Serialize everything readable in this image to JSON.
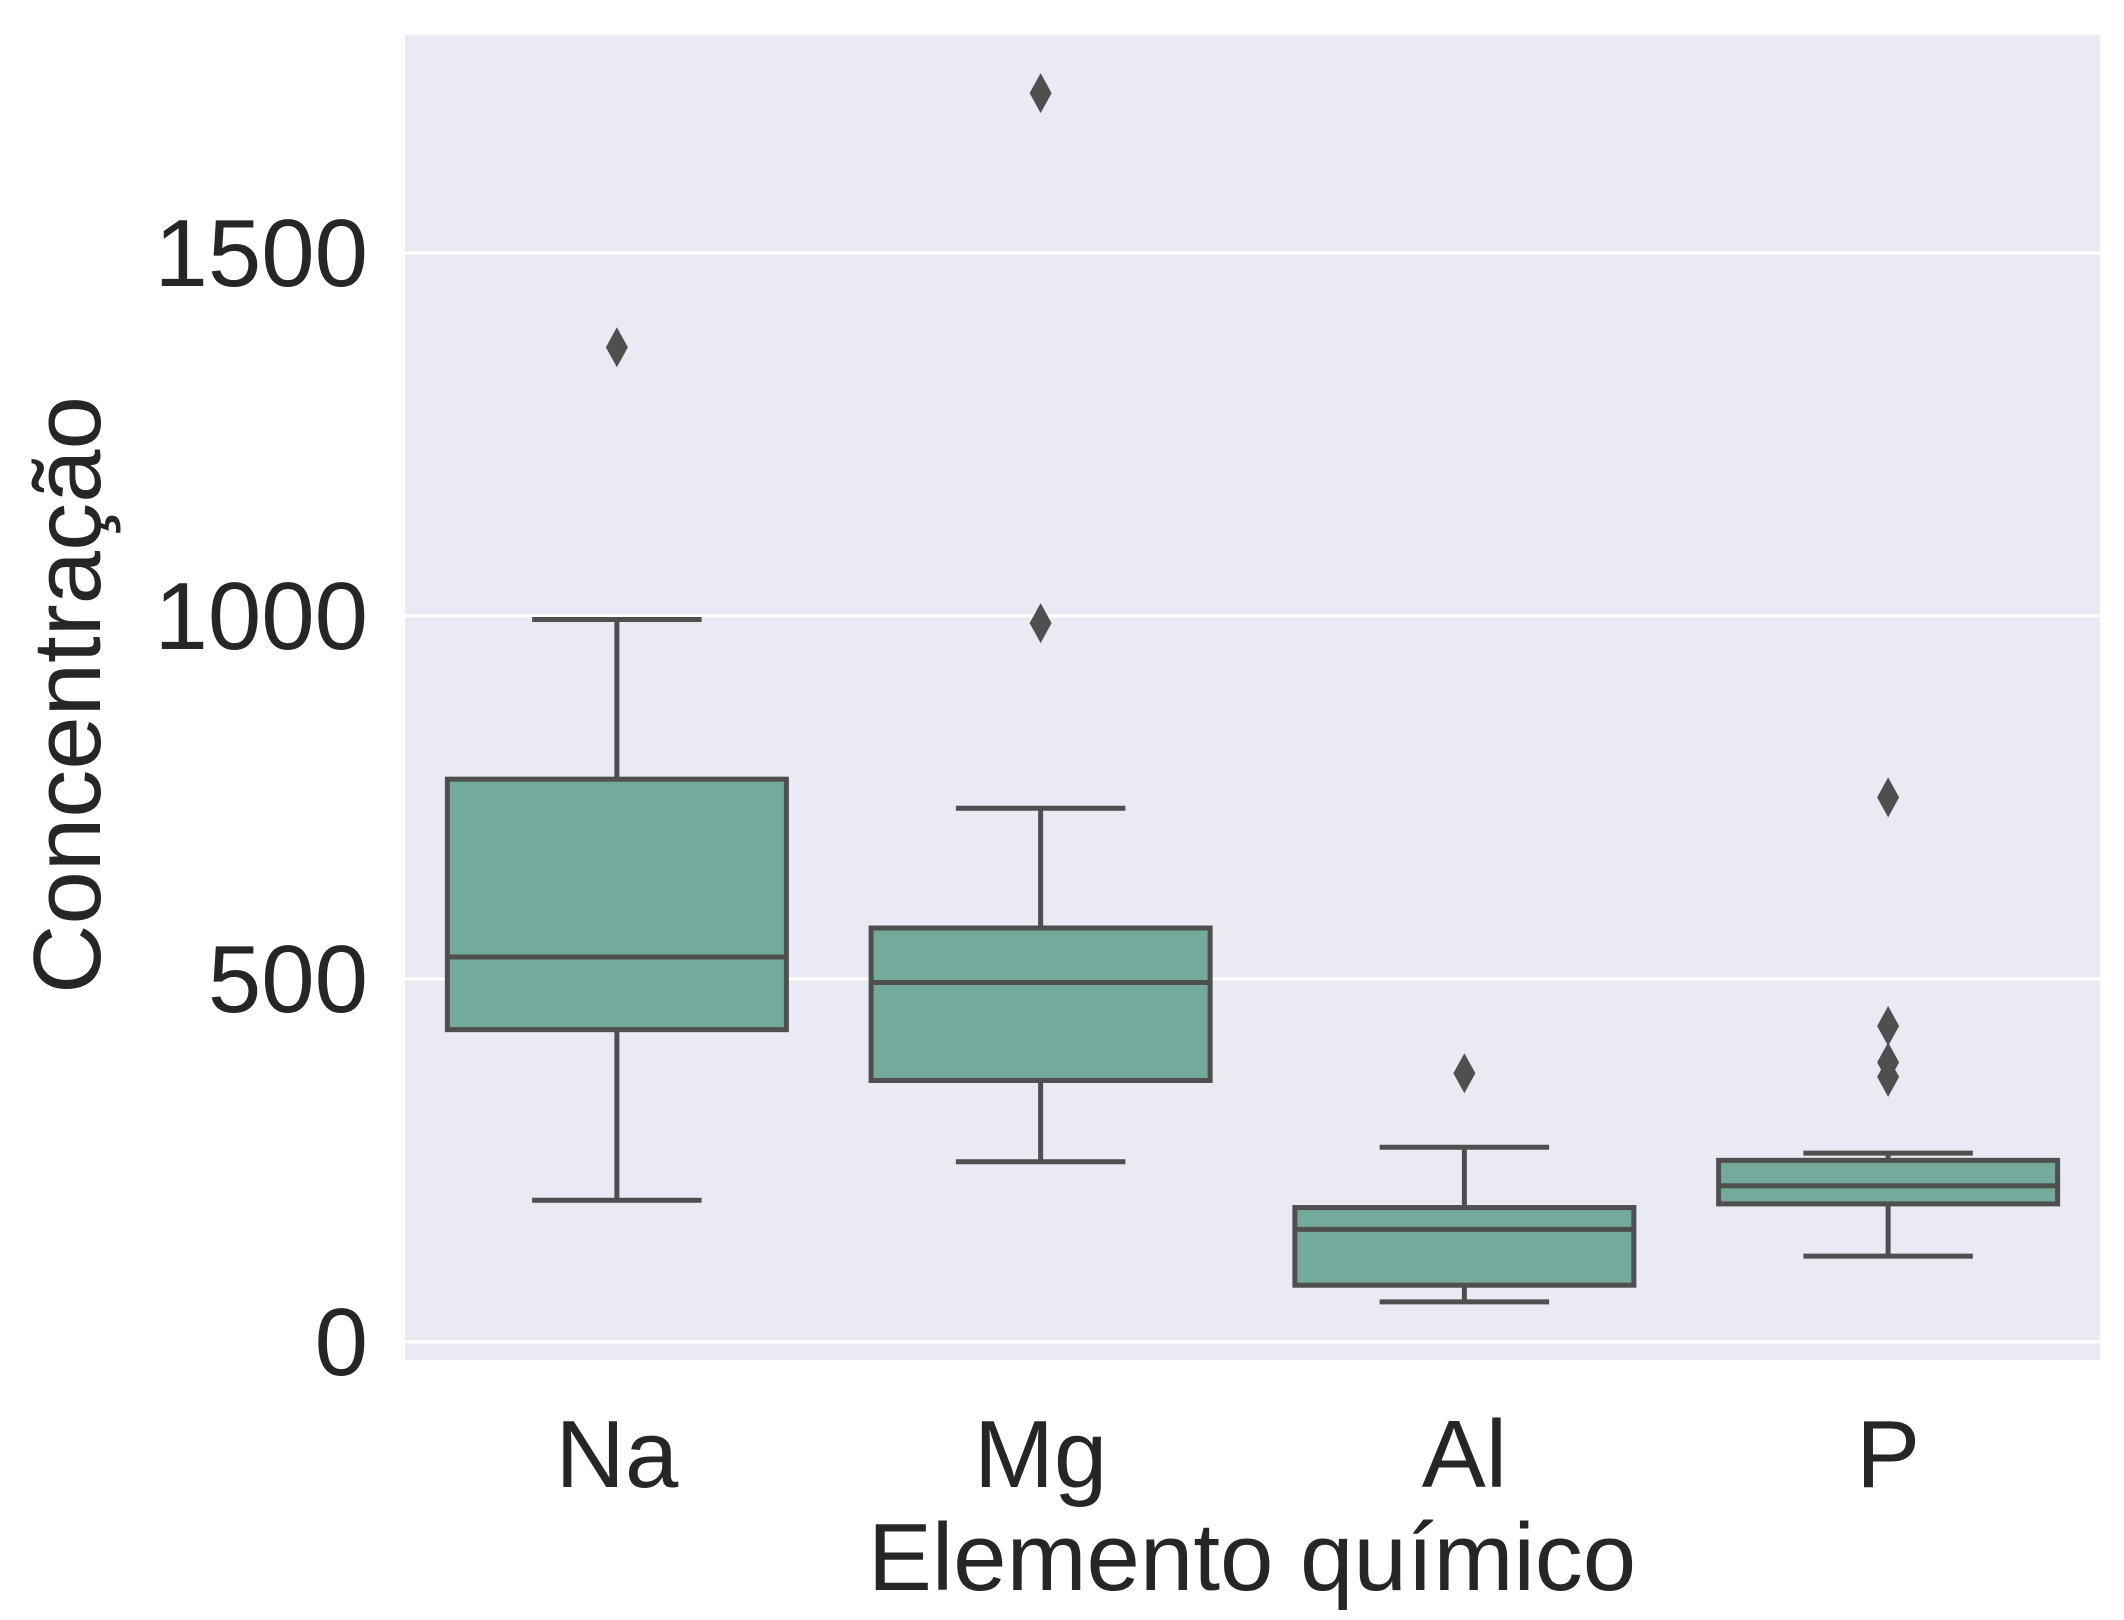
{
  "chart_data": {
    "type": "boxplot",
    "title": "",
    "xlabel": "Elemento químico",
    "ylabel": "Concentração",
    "ylim": [
      -25,
      1800
    ],
    "yticks": [
      0,
      500,
      1000,
      1500
    ],
    "ytick_labels": [
      "0",
      "500",
      "1000",
      "1500"
    ],
    "grid": true,
    "categories": [
      "Na",
      "Mg",
      "Al",
      "P"
    ],
    "boxes": [
      {
        "category": "Na",
        "whisker_low": 195,
        "q1": 430,
        "median": 530,
        "q3": 775,
        "whisker_high": 995,
        "outliers": [
          1370
        ]
      },
      {
        "category": "Mg",
        "whisker_low": 248,
        "q1": 360,
        "median": 495,
        "q3": 570,
        "whisker_high": 735,
        "outliers": [
          990,
          1720
        ]
      },
      {
        "category": "Al",
        "whisker_low": 55,
        "q1": 78,
        "median": 155,
        "q3": 185,
        "whisker_high": 268,
        "outliers": [
          370
        ]
      },
      {
        "category": "P",
        "whisker_low": 118,
        "q1": 190,
        "median": 215,
        "q3": 250,
        "whisker_high": 260,
        "outliers": [
          365,
          385,
          435,
          750
        ]
      }
    ],
    "colors": {
      "box_fill": "#74aa9c",
      "box_edge": "#4f4f4f",
      "plot_background": "#eaeaf2",
      "grid": "#ffffff",
      "text": "#262626"
    }
  }
}
